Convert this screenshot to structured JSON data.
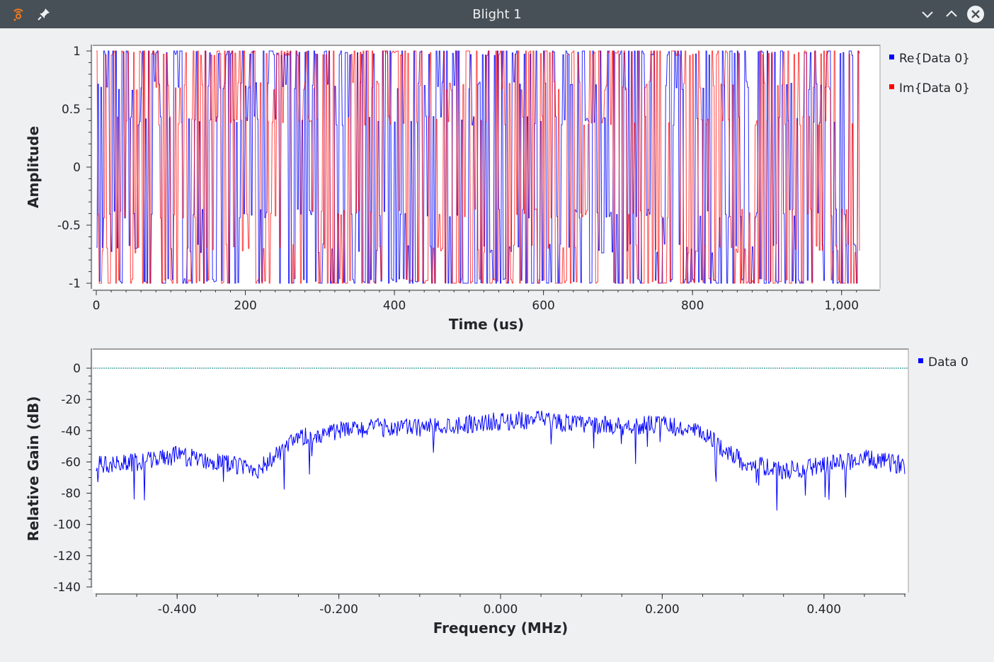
{
  "window": {
    "title": "Blight 1",
    "icons": [
      "app-icon",
      "pin-icon",
      "minimize-icon",
      "maximize-icon",
      "close-icon"
    ]
  },
  "time_plot": {
    "ylabel": "Amplitude",
    "xlabel": "Time (us)",
    "yticks": [
      "1",
      "0.5",
      "0",
      "-0.5",
      "-1"
    ],
    "xticks": [
      "0",
      "200",
      "400",
      "600",
      "800",
      "1,000"
    ],
    "legend": [
      {
        "label": "Re{Data 0}",
        "color": "#0000ff"
      },
      {
        "label": "Im{Data 0}",
        "color": "#ff0000"
      }
    ]
  },
  "freq_plot": {
    "ylabel": "Relative Gain (dB)",
    "xlabel": "Frequency (MHz)",
    "yticks": [
      "0",
      "-20",
      "-40",
      "-60",
      "-80",
      "-100",
      "-120",
      "-140"
    ],
    "xticks": [
      "-0.400",
      "-0.200",
      "0.000",
      "0.200",
      "0.400"
    ],
    "legend": [
      {
        "label": "Data 0",
        "color": "#0000ff"
      }
    ]
  },
  "chart_data": [
    {
      "type": "line",
      "xlabel": "Time (us)",
      "ylabel": "Amplitude",
      "xlim": [
        0,
        1024
      ],
      "ylim": [
        -1,
        1
      ],
      "grid": false,
      "legend_position": "right",
      "series": [
        {
          "name": "Re{Data 0}",
          "color": "#0000ff",
          "values_description_range": [
            -1,
            1
          ]
        },
        {
          "name": "Im{Data 0}",
          "color": "#ff0000",
          "values_description_range": [
            -1,
            1
          ]
        }
      ],
      "key_points": {
        "Re{Data 0}": {
          "x": [
            0,
            100,
            200,
            300,
            400,
            500,
            600,
            700,
            800,
            900,
            1000
          ],
          "y": [
            -0.9,
            0.9,
            -0.5,
            0.8,
            -0.9,
            0.7,
            -0.8,
            0.9,
            -0.7,
            0.8,
            -0.9
          ]
        },
        "Im{Data 0}": {
          "x": [
            0,
            100,
            200,
            300,
            400,
            500,
            600,
            700,
            800,
            900,
            1000
          ],
          "y": [
            0.8,
            -0.9,
            0.9,
            -0.6,
            0.9,
            -0.9,
            0.7,
            -0.9,
            0.9,
            -0.7,
            0.9
          ]
        }
      }
    },
    {
      "type": "line",
      "xlabel": "Frequency (MHz)",
      "ylabel": "Relative Gain (dB)",
      "xlim": [
        -0.5,
        0.5
      ],
      "ylim": [
        -140,
        0
      ],
      "grid": false,
      "legend_position": "right",
      "reference_line": {
        "y": 0,
        "color": "#008080"
      },
      "series": [
        {
          "name": "Data 0",
          "color": "#0000ff",
          "x": [
            -0.5,
            -0.45,
            -0.4,
            -0.35,
            -0.3,
            -0.25,
            -0.2,
            -0.15,
            -0.1,
            -0.05,
            0.0,
            0.05,
            0.1,
            0.15,
            0.2,
            0.25,
            0.3,
            0.35,
            0.4,
            0.45,
            0.5
          ],
          "y": [
            -62,
            -60,
            -56,
            -60,
            -65,
            -45,
            -40,
            -38,
            -38,
            -36,
            -34,
            -33,
            -36,
            -37,
            -36,
            -42,
            -60,
            -66,
            -62,
            -58,
            -62
          ]
        }
      ]
    }
  ]
}
